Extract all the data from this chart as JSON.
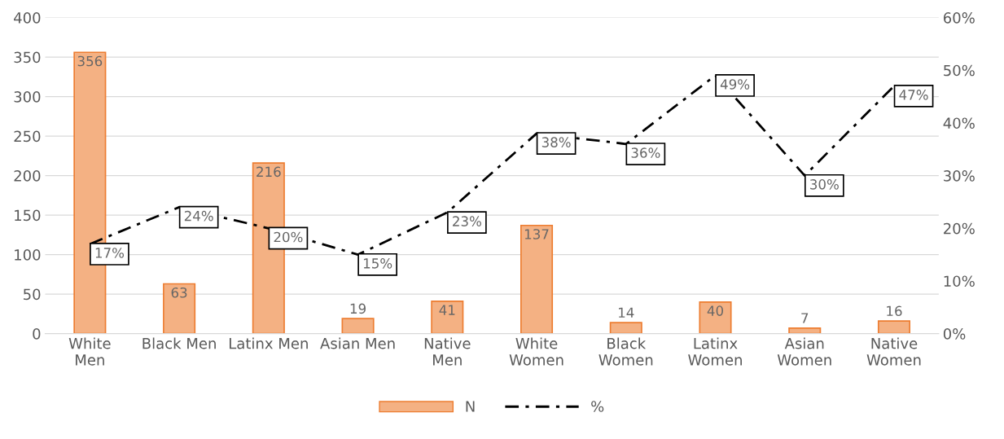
{
  "chart_data": {
    "type": "bar",
    "categories": [
      "White\nMen",
      "Black Men",
      "Latinx Men",
      "Asian Men",
      "Native\nMen",
      "White\nWomen",
      "Black\nWomen",
      "Latinx\nWomen",
      "Asian\nWomen",
      "Native\nWomen"
    ],
    "series": [
      {
        "name": "N",
        "color": "#f4b183",
        "values": [
          356,
          63,
          216,
          19,
          41,
          137,
          14,
          40,
          7,
          16
        ],
        "value_labels": [
          "356",
          "63",
          "216",
          "19",
          "41",
          "137",
          "14",
          "40",
          "7",
          "16"
        ]
      },
      {
        "name": "%",
        "type": "line",
        "axis": "y2",
        "color": "#000000",
        "line_style": "dashdot",
        "values": [
          17,
          24,
          20,
          15,
          23,
          38,
          36,
          49,
          30,
          47
        ],
        "value_labels": [
          "17%",
          "24%",
          "20%",
          "15%",
          "23%",
          "38%",
          "36%",
          "49%",
          "30%",
          "47%"
        ]
      }
    ],
    "ylim": [
      0,
      400
    ],
    "yticks": [
      0,
      50,
      100,
      150,
      200,
      250,
      300,
      350,
      400
    ],
    "y2lim": [
      0,
      60
    ],
    "y2ticks": [
      {
        "value": 0,
        "label": "0%"
      },
      {
        "value": 10,
        "label": "10%"
      },
      {
        "value": 20,
        "label": "20%"
      },
      {
        "value": 30,
        "label": "30%"
      },
      {
        "value": 40,
        "label": "40%"
      },
      {
        "value": 50,
        "label": "50%"
      },
      {
        "value": 60,
        "label": "60%"
      }
    ],
    "grid": "y",
    "legend": "bottom",
    "marker": "none"
  }
}
